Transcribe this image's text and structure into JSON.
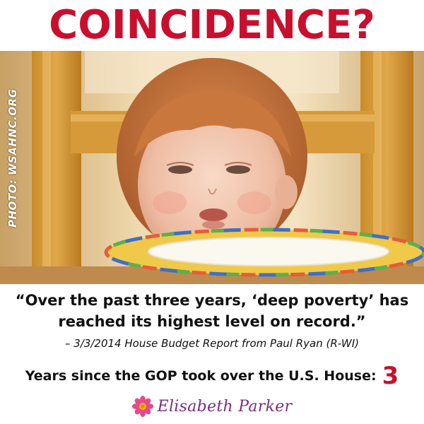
{
  "headline": "COINCIDENCE?",
  "photo": {
    "credit": "PHOTO: WSAHNC.ORG"
  },
  "quote": {
    "line1": "“Over the past three years, ‘deep poverty’ has",
    "line2": "reached its highest level on record.”"
  },
  "attribution": "– 3/3/2014 House Budget Report from Paul Ryan (R-WI)",
  "years": {
    "label": "Years since the GOP took over the U.S. House:",
    "count": "3"
  },
  "signature": {
    "name": "Elisabeth Parker",
    "icon": "flower-icon"
  },
  "colors": {
    "headline": "#c8102e",
    "count": "#c8102e",
    "signature": "#7b2d82",
    "flower": "#e64a8c"
  }
}
